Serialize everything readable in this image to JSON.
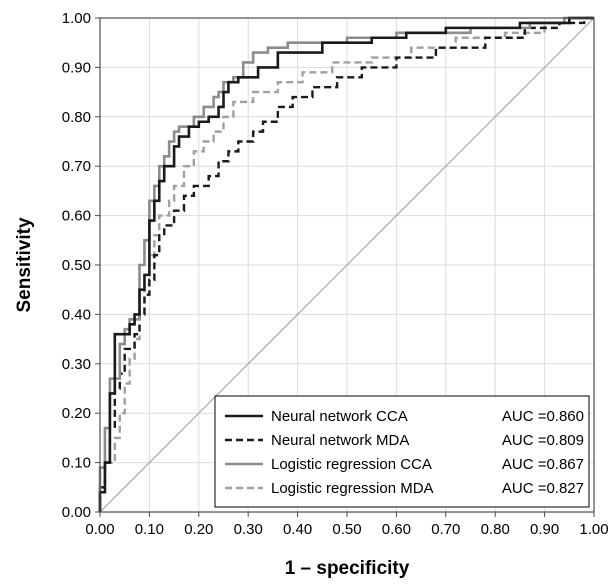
{
  "chart_data": {
    "type": "line",
    "title": "",
    "xlabel": "1 – specificity",
    "ylabel": "Sensitivity",
    "xlim": [
      0,
      1
    ],
    "ylim": [
      0,
      1
    ],
    "grid": true,
    "legend_position": "bottom-right",
    "x_ticks": [
      "0.00",
      "0.10",
      "0.20",
      "0.30",
      "0.40",
      "0.50",
      "0.60",
      "0.70",
      "0.80",
      "0.90",
      "1.00"
    ],
    "y_ticks": [
      "0.00",
      "0.10",
      "0.20",
      "0.30",
      "0.40",
      "0.50",
      "0.60",
      "0.70",
      "0.80",
      "0.90",
      "1.00"
    ],
    "diagonal": {
      "color": "#a8a8a8",
      "points": [
        [
          0,
          0
        ],
        [
          1,
          1
        ]
      ]
    },
    "series": [
      {
        "name": "Neural network CCA",
        "auc": "AUC =0.860",
        "color": "#1a1a1a",
        "dash": "solid",
        "points": [
          [
            0,
            0
          ],
          [
            0,
            0.04
          ],
          [
            0.01,
            0.04
          ],
          [
            0.01,
            0.1
          ],
          [
            0.02,
            0.1
          ],
          [
            0.02,
            0.24
          ],
          [
            0.03,
            0.24
          ],
          [
            0.03,
            0.36
          ],
          [
            0.06,
            0.36
          ],
          [
            0.06,
            0.38
          ],
          [
            0.07,
            0.38
          ],
          [
            0.07,
            0.4
          ],
          [
            0.08,
            0.4
          ],
          [
            0.08,
            0.45
          ],
          [
            0.09,
            0.45
          ],
          [
            0.09,
            0.48
          ],
          [
            0.1,
            0.48
          ],
          [
            0.1,
            0.59
          ],
          [
            0.11,
            0.59
          ],
          [
            0.11,
            0.63
          ],
          [
            0.12,
            0.63
          ],
          [
            0.12,
            0.67
          ],
          [
            0.13,
            0.67
          ],
          [
            0.13,
            0.7
          ],
          [
            0.15,
            0.7
          ],
          [
            0.15,
            0.74
          ],
          [
            0.16,
            0.74
          ],
          [
            0.16,
            0.76
          ],
          [
            0.18,
            0.76
          ],
          [
            0.18,
            0.78
          ],
          [
            0.2,
            0.78
          ],
          [
            0.2,
            0.79
          ],
          [
            0.22,
            0.79
          ],
          [
            0.22,
            0.8
          ],
          [
            0.24,
            0.8
          ],
          [
            0.24,
            0.82
          ],
          [
            0.25,
            0.82
          ],
          [
            0.25,
            0.85
          ],
          [
            0.26,
            0.85
          ],
          [
            0.26,
            0.87
          ],
          [
            0.28,
            0.87
          ],
          [
            0.28,
            0.88
          ],
          [
            0.32,
            0.88
          ],
          [
            0.32,
            0.9
          ],
          [
            0.36,
            0.9
          ],
          [
            0.36,
            0.93
          ],
          [
            0.45,
            0.93
          ],
          [
            0.45,
            0.95
          ],
          [
            0.55,
            0.95
          ],
          [
            0.55,
            0.96
          ],
          [
            0.62,
            0.96
          ],
          [
            0.62,
            0.97
          ],
          [
            0.7,
            0.97
          ],
          [
            0.7,
            0.98
          ],
          [
            0.85,
            0.98
          ],
          [
            0.85,
            0.99
          ],
          [
            0.95,
            0.99
          ],
          [
            0.95,
            1.0
          ],
          [
            1.0,
            1.0
          ]
        ]
      },
      {
        "name": "Neural network MDA",
        "auc": "AUC =0.809",
        "color": "#1a1a1a",
        "dash": "dashed",
        "points": [
          [
            0,
            0
          ],
          [
            0,
            0.05
          ],
          [
            0.01,
            0.05
          ],
          [
            0.01,
            0.1
          ],
          [
            0.02,
            0.1
          ],
          [
            0.02,
            0.17
          ],
          [
            0.03,
            0.17
          ],
          [
            0.03,
            0.25
          ],
          [
            0.04,
            0.25
          ],
          [
            0.04,
            0.28
          ],
          [
            0.05,
            0.28
          ],
          [
            0.05,
            0.33
          ],
          [
            0.07,
            0.33
          ],
          [
            0.07,
            0.36
          ],
          [
            0.08,
            0.36
          ],
          [
            0.08,
            0.4
          ],
          [
            0.09,
            0.4
          ],
          [
            0.09,
            0.44
          ],
          [
            0.1,
            0.44
          ],
          [
            0.1,
            0.47
          ],
          [
            0.11,
            0.47
          ],
          [
            0.11,
            0.52
          ],
          [
            0.12,
            0.52
          ],
          [
            0.12,
            0.56
          ],
          [
            0.13,
            0.56
          ],
          [
            0.13,
            0.58
          ],
          [
            0.15,
            0.58
          ],
          [
            0.15,
            0.61
          ],
          [
            0.17,
            0.61
          ],
          [
            0.17,
            0.64
          ],
          [
            0.19,
            0.64
          ],
          [
            0.19,
            0.66
          ],
          [
            0.22,
            0.66
          ],
          [
            0.22,
            0.68
          ],
          [
            0.24,
            0.68
          ],
          [
            0.24,
            0.71
          ],
          [
            0.26,
            0.71
          ],
          [
            0.26,
            0.73
          ],
          [
            0.28,
            0.73
          ],
          [
            0.28,
            0.75
          ],
          [
            0.31,
            0.75
          ],
          [
            0.31,
            0.77
          ],
          [
            0.33,
            0.77
          ],
          [
            0.33,
            0.79
          ],
          [
            0.36,
            0.79
          ],
          [
            0.36,
            0.82
          ],
          [
            0.39,
            0.82
          ],
          [
            0.39,
            0.84
          ],
          [
            0.43,
            0.84
          ],
          [
            0.43,
            0.86
          ],
          [
            0.48,
            0.86
          ],
          [
            0.48,
            0.88
          ],
          [
            0.53,
            0.88
          ],
          [
            0.53,
            0.9
          ],
          [
            0.6,
            0.9
          ],
          [
            0.6,
            0.92
          ],
          [
            0.68,
            0.92
          ],
          [
            0.68,
            0.94
          ],
          [
            0.78,
            0.94
          ],
          [
            0.78,
            0.96
          ],
          [
            0.86,
            0.96
          ],
          [
            0.86,
            0.98
          ],
          [
            0.93,
            0.98
          ],
          [
            0.93,
            0.99
          ],
          [
            0.98,
            0.99
          ],
          [
            0.98,
            1.0
          ],
          [
            1.0,
            1.0
          ]
        ]
      },
      {
        "name": "Logistic regression CCA",
        "auc": "AUC =0.867",
        "color": "#8c8c8c",
        "dash": "solid",
        "points": [
          [
            0,
            0
          ],
          [
            0,
            0.09
          ],
          [
            0.01,
            0.09
          ],
          [
            0.01,
            0.17
          ],
          [
            0.02,
            0.17
          ],
          [
            0.02,
            0.27
          ],
          [
            0.04,
            0.27
          ],
          [
            0.04,
            0.34
          ],
          [
            0.05,
            0.34
          ],
          [
            0.05,
            0.37
          ],
          [
            0.06,
            0.37
          ],
          [
            0.06,
            0.39
          ],
          [
            0.08,
            0.39
          ],
          [
            0.08,
            0.5
          ],
          [
            0.09,
            0.5
          ],
          [
            0.09,
            0.55
          ],
          [
            0.1,
            0.55
          ],
          [
            0.1,
            0.63
          ],
          [
            0.11,
            0.63
          ],
          [
            0.11,
            0.66
          ],
          [
            0.12,
            0.66
          ],
          [
            0.12,
            0.7
          ],
          [
            0.13,
            0.7
          ],
          [
            0.13,
            0.72
          ],
          [
            0.14,
            0.72
          ],
          [
            0.14,
            0.75
          ],
          [
            0.15,
            0.75
          ],
          [
            0.15,
            0.77
          ],
          [
            0.16,
            0.77
          ],
          [
            0.16,
            0.78
          ],
          [
            0.19,
            0.78
          ],
          [
            0.19,
            0.8
          ],
          [
            0.21,
            0.8
          ],
          [
            0.21,
            0.82
          ],
          [
            0.23,
            0.82
          ],
          [
            0.23,
            0.84
          ],
          [
            0.24,
            0.84
          ],
          [
            0.24,
            0.85
          ],
          [
            0.25,
            0.85
          ],
          [
            0.25,
            0.87
          ],
          [
            0.27,
            0.87
          ],
          [
            0.27,
            0.88
          ],
          [
            0.29,
            0.88
          ],
          [
            0.29,
            0.91
          ],
          [
            0.31,
            0.91
          ],
          [
            0.31,
            0.93
          ],
          [
            0.34,
            0.93
          ],
          [
            0.34,
            0.94
          ],
          [
            0.38,
            0.94
          ],
          [
            0.38,
            0.95
          ],
          [
            0.5,
            0.95
          ],
          [
            0.5,
            0.96
          ],
          [
            0.6,
            0.96
          ],
          [
            0.6,
            0.97
          ],
          [
            0.75,
            0.97
          ],
          [
            0.75,
            0.98
          ],
          [
            0.87,
            0.98
          ],
          [
            0.87,
            0.99
          ],
          [
            0.94,
            0.99
          ],
          [
            0.94,
            1.0
          ],
          [
            1.0,
            1.0
          ]
        ]
      },
      {
        "name": "Logistic regression MDA",
        "auc": "AUC =0.827",
        "color": "#a0a0a0",
        "dash": "dashed",
        "points": [
          [
            0,
            0
          ],
          [
            0,
            0.05
          ],
          [
            0.01,
            0.05
          ],
          [
            0.01,
            0.1
          ],
          [
            0.03,
            0.1
          ],
          [
            0.03,
            0.15
          ],
          [
            0.04,
            0.15
          ],
          [
            0.04,
            0.2
          ],
          [
            0.05,
            0.2
          ],
          [
            0.05,
            0.26
          ],
          [
            0.06,
            0.26
          ],
          [
            0.06,
            0.31
          ],
          [
            0.07,
            0.31
          ],
          [
            0.07,
            0.35
          ],
          [
            0.08,
            0.35
          ],
          [
            0.08,
            0.4
          ],
          [
            0.09,
            0.4
          ],
          [
            0.09,
            0.46
          ],
          [
            0.1,
            0.46
          ],
          [
            0.1,
            0.52
          ],
          [
            0.11,
            0.52
          ],
          [
            0.11,
            0.56
          ],
          [
            0.12,
            0.56
          ],
          [
            0.12,
            0.6
          ],
          [
            0.14,
            0.6
          ],
          [
            0.14,
            0.63
          ],
          [
            0.15,
            0.63
          ],
          [
            0.15,
            0.66
          ],
          [
            0.17,
            0.66
          ],
          [
            0.17,
            0.7
          ],
          [
            0.19,
            0.7
          ],
          [
            0.19,
            0.73
          ],
          [
            0.21,
            0.73
          ],
          [
            0.21,
            0.75
          ],
          [
            0.23,
            0.75
          ],
          [
            0.23,
            0.77
          ],
          [
            0.25,
            0.77
          ],
          [
            0.25,
            0.8
          ],
          [
            0.27,
            0.8
          ],
          [
            0.27,
            0.83
          ],
          [
            0.31,
            0.83
          ],
          [
            0.31,
            0.85
          ],
          [
            0.36,
            0.85
          ],
          [
            0.36,
            0.87
          ],
          [
            0.41,
            0.87
          ],
          [
            0.41,
            0.89
          ],
          [
            0.47,
            0.89
          ],
          [
            0.47,
            0.91
          ],
          [
            0.55,
            0.91
          ],
          [
            0.55,
            0.92
          ],
          [
            0.63,
            0.92
          ],
          [
            0.63,
            0.94
          ],
          [
            0.72,
            0.94
          ],
          [
            0.72,
            0.96
          ],
          [
            0.82,
            0.96
          ],
          [
            0.82,
            0.97
          ],
          [
            0.9,
            0.97
          ],
          [
            0.9,
            0.99
          ],
          [
            0.96,
            0.99
          ],
          [
            0.96,
            1.0
          ],
          [
            1.0,
            1.0
          ]
        ]
      }
    ]
  }
}
